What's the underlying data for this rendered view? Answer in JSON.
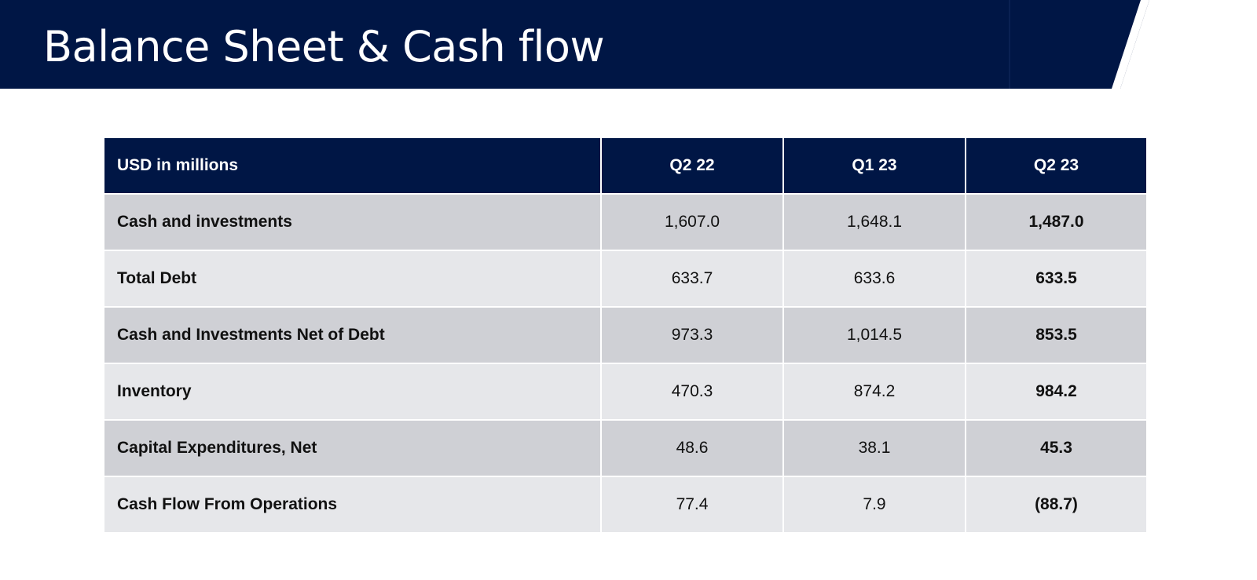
{
  "slide": {
    "title": "Balance Sheet & Cash flow",
    "colors": {
      "navy": "#001645",
      "header_accent": "#001645",
      "row_dark": "#cfd0d5",
      "row_light": "#e6e7ea"
    }
  },
  "table": {
    "headers": [
      "USD in millions",
      "Q2 22",
      "Q1 23",
      "Q2 23"
    ],
    "rows": [
      {
        "label": "Cash and investments",
        "q2_22": "1,607.0",
        "q1_23": "1,648.1",
        "q2_23": "1,487.0"
      },
      {
        "label": "Total Debt",
        "q2_22": "633.7",
        "q1_23": "633.6",
        "q2_23": "633.5"
      },
      {
        "label": "Cash and Investments Net of Debt",
        "q2_22": "973.3",
        "q1_23": "1,014.5",
        "q2_23": "853.5"
      },
      {
        "label": "Inventory",
        "q2_22": "470.3",
        "q1_23": "874.2",
        "q2_23": "984.2"
      },
      {
        "label": "Capital Expenditures, Net",
        "q2_22": "48.6",
        "q1_23": "38.1",
        "q2_23": "45.3"
      },
      {
        "label": "Cash Flow From Operations",
        "q2_22": "77.4",
        "q1_23": "7.9",
        "q2_23": "(88.7)"
      }
    ]
  }
}
